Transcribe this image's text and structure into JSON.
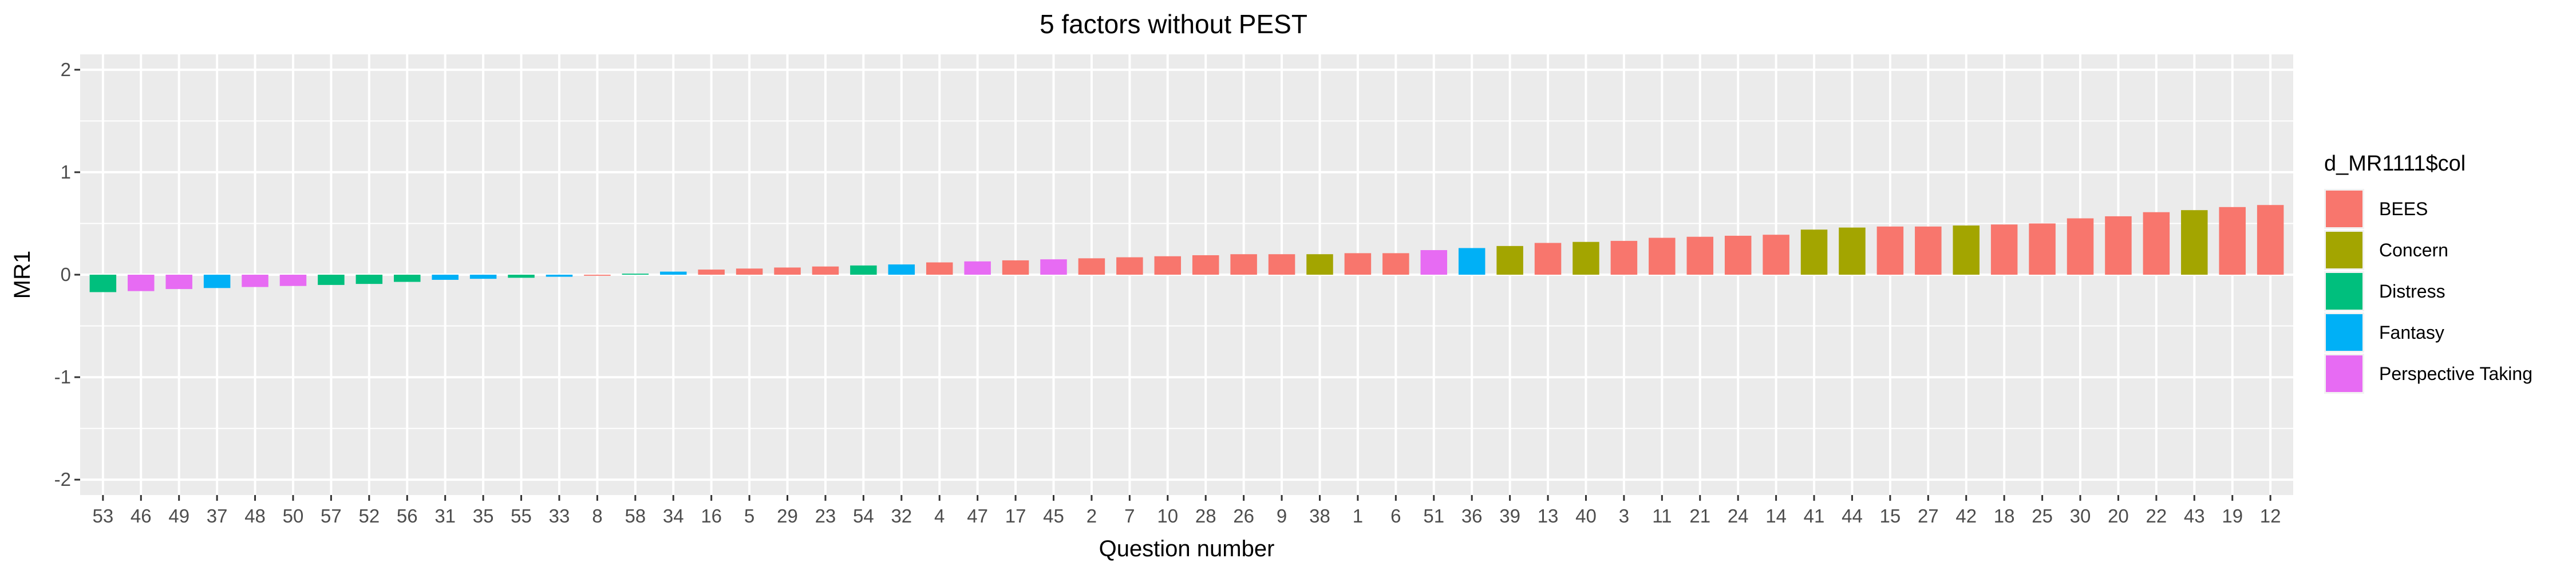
{
  "chart_data": {
    "type": "bar",
    "title": "5 factors without PEST",
    "xlabel": "Question number",
    "ylabel": "MR1",
    "ylim": [
      -2.15,
      2.15
    ],
    "yticks": [
      -2,
      -1,
      0,
      1,
      2
    ],
    "grid": true,
    "legend": {
      "title": "d_MR1111$col",
      "position": "right",
      "items": [
        {
          "label": "BEES",
          "color": "#F8766D"
        },
        {
          "label": "Concern",
          "color": "#A3A500"
        },
        {
          "label": "Distress",
          "color": "#00BF7D"
        },
        {
          "label": "Fantasy",
          "color": "#00B0F6"
        },
        {
          "label": "Perspective Taking",
          "color": "#E76BF3"
        }
      ]
    },
    "categories": [
      "53",
      "46",
      "49",
      "37",
      "48",
      "50",
      "57",
      "52",
      "56",
      "31",
      "35",
      "55",
      "33",
      "8",
      "58",
      "34",
      "16",
      "5",
      "29",
      "23",
      "54",
      "32",
      "4",
      "47",
      "17",
      "45",
      "2",
      "7",
      "10",
      "28",
      "26",
      "9",
      "38",
      "1",
      "6",
      "51",
      "36",
      "39",
      "13",
      "40",
      "3",
      "11",
      "21",
      "24",
      "14",
      "41",
      "44",
      "15",
      "27",
      "42",
      "18",
      "25",
      "30",
      "20",
      "22",
      "43",
      "19",
      "12"
    ],
    "values": [
      -0.17,
      -0.16,
      -0.14,
      -0.13,
      -0.12,
      -0.11,
      -0.1,
      -0.09,
      -0.07,
      -0.05,
      -0.04,
      -0.03,
      -0.02,
      -0.01,
      0.01,
      0.03,
      0.05,
      0.06,
      0.07,
      0.08,
      0.09,
      0.1,
      0.12,
      0.13,
      0.14,
      0.15,
      0.16,
      0.17,
      0.18,
      0.19,
      0.2,
      0.2,
      0.2,
      0.21,
      0.21,
      0.24,
      0.26,
      0.28,
      0.31,
      0.32,
      0.33,
      0.36,
      0.37,
      0.38,
      0.39,
      0.44,
      0.46,
      0.47,
      0.47,
      0.48,
      0.49,
      0.5,
      0.55,
      0.57,
      0.61,
      0.63,
      0.66,
      0.68
    ],
    "groups": [
      "Distress",
      "Perspective Taking",
      "Perspective Taking",
      "Fantasy",
      "Perspective Taking",
      "Perspective Taking",
      "Distress",
      "Distress",
      "Distress",
      "Fantasy",
      "Fantasy",
      "Distress",
      "Fantasy",
      "BEES",
      "Distress",
      "Fantasy",
      "BEES",
      "BEES",
      "BEES",
      "BEES",
      "Distress",
      "Fantasy",
      "BEES",
      "Perspective Taking",
      "BEES",
      "Perspective Taking",
      "BEES",
      "BEES",
      "BEES",
      "BEES",
      "BEES",
      "BEES",
      "Concern",
      "BEES",
      "BEES",
      "Perspective Taking",
      "Fantasy",
      "Concern",
      "BEES",
      "Concern",
      "BEES",
      "BEES",
      "BEES",
      "BEES",
      "BEES",
      "Concern",
      "Concern",
      "BEES",
      "BEES",
      "Concern",
      "BEES",
      "BEES",
      "BEES",
      "BEES",
      "BEES",
      "Concern",
      "BEES",
      "BEES"
    ]
  }
}
